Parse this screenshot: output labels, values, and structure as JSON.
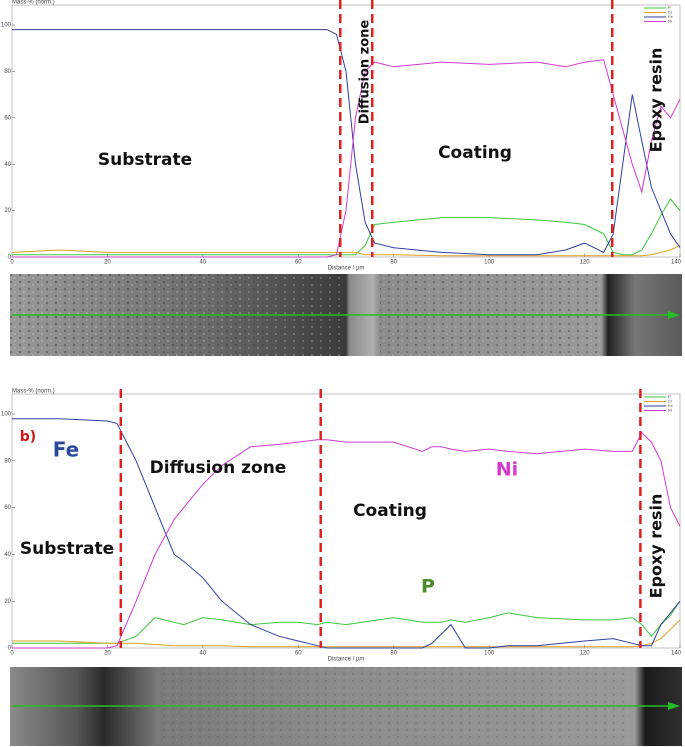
{
  "chart_data": [
    {
      "type": "line",
      "title": "Mass-% (norm.)",
      "x_label": "Distance / µm",
      "x": [
        0,
        10,
        20,
        30,
        40,
        50,
        60,
        66,
        68,
        70,
        72,
        74,
        76,
        80,
        90,
        100,
        110,
        116,
        120,
        124,
        126,
        128,
        130,
        132,
        134,
        136,
        138,
        140
      ],
      "series": [
        {
          "name": "P",
          "color": "#3cc83c",
          "values": [
            1,
            1,
            1,
            1,
            1,
            1,
            1,
            1,
            1,
            1,
            1,
            5,
            14,
            15,
            17,
            17,
            16,
            15,
            14,
            10,
            2,
            1,
            1,
            3,
            10,
            18,
            25,
            20
          ]
        },
        {
          "name": "Cr",
          "color": "#e0a020",
          "values": [
            2,
            3,
            2,
            2,
            2,
            2,
            2,
            2,
            2,
            2,
            2,
            1,
            1,
            1,
            0.5,
            0.5,
            0.5,
            0.5,
            0.5,
            0.5,
            0.5,
            0.5,
            0.5,
            0.5,
            1,
            2,
            3,
            5
          ]
        },
        {
          "name": "Fe",
          "color": "#303fa0",
          "values": [
            98,
            98,
            98,
            98,
            98,
            98,
            98,
            98,
            96,
            80,
            40,
            15,
            6,
            4,
            2,
            1,
            1,
            3,
            6,
            2,
            10,
            40,
            70,
            50,
            30,
            20,
            10,
            4
          ]
        },
        {
          "name": "Ni",
          "color": "#d23ad2",
          "values": [
            0,
            0,
            0,
            0,
            0,
            0,
            0,
            0,
            1,
            20,
            60,
            80,
            84,
            82,
            84,
            83,
            84,
            82,
            84,
            85,
            70,
            55,
            40,
            28,
            50,
            65,
            60,
            68
          ]
        }
      ],
      "xlim": [
        0,
        140
      ],
      "ylim": [
        0,
        100
      ],
      "xticks": [
        0,
        20,
        40,
        60,
        80,
        100,
        120,
        140
      ],
      "yticks": [
        0,
        20,
        40,
        60,
        80,
        100
      ],
      "boundaries": [
        68.8,
        75.5,
        125.8
      ],
      "annotations": [
        {
          "text": "Substrate",
          "color": "#111"
        },
        {
          "text": "Diffusion zone",
          "color": "#111"
        },
        {
          "text": "Coating",
          "color": "#111"
        },
        {
          "text": "Epoxy resin",
          "color": "#111"
        }
      ]
    },
    {
      "type": "line",
      "title": "Mass-% (norm.)",
      "x_label": "Distance / µm",
      "x": [
        0,
        10,
        20,
        22,
        26,
        30,
        34,
        36,
        40,
        44,
        50,
        56,
        60,
        64,
        66,
        70,
        80,
        86,
        88,
        90,
        92,
        95,
        100,
        104,
        110,
        120,
        126,
        130,
        132,
        134,
        136,
        138,
        140
      ],
      "series": [
        {
          "name": "P",
          "color": "#3cc83c",
          "values": [
            2,
            2,
            2,
            2,
            5,
            13,
            11,
            10,
            13,
            12,
            10,
            11,
            11,
            10,
            11,
            10,
            13,
            11,
            11,
            11,
            12,
            11,
            13,
            15,
            13,
            12,
            12,
            13,
            10,
            5,
            10,
            14,
            20
          ]
        },
        {
          "name": "Cr",
          "color": "#e0a020",
          "values": [
            3,
            3,
            2,
            2,
            2,
            1.5,
            1,
            1,
            1,
            1,
            0.5,
            0.5,
            0.5,
            0.5,
            0.5,
            0.5,
            0.5,
            0.5,
            0.5,
            0.5,
            0.5,
            0.5,
            0.5,
            0.5,
            0.5,
            0.5,
            0.5,
            0.5,
            1,
            2,
            4,
            8,
            12
          ]
        },
        {
          "name": "Fe",
          "color": "#303fa0",
          "values": [
            98,
            98,
            97,
            96,
            80,
            60,
            40,
            37,
            30,
            20,
            10,
            5,
            3,
            1,
            0,
            0,
            0,
            0,
            2,
            6,
            10,
            0,
            0,
            1,
            1,
            3,
            4,
            2,
            1,
            1,
            10,
            15,
            20
          ]
        },
        {
          "name": "Ni",
          "color": "#d23ad2",
          "values": [
            0,
            0,
            0,
            1,
            20,
            40,
            55,
            60,
            70,
            78,
            86,
            87,
            88,
            89,
            89,
            88,
            88,
            84,
            86,
            86,
            85,
            84,
            85,
            84,
            83,
            85,
            84,
            84,
            92,
            88,
            80,
            60,
            52
          ]
        }
      ],
      "xlim": [
        0,
        140
      ],
      "ylim": [
        0,
        100
      ],
      "xticks": [
        0,
        20,
        40,
        60,
        80,
        100,
        120,
        140
      ],
      "yticks": [
        0,
        20,
        40,
        60,
        80,
        100
      ],
      "boundaries": [
        22.8,
        64.7,
        131.7
      ],
      "annotations": [
        {
          "text": "b)",
          "color": "#d01818"
        },
        {
          "text": "Fe",
          "color": "#2d4a9a"
        },
        {
          "text": "Diffusion zone",
          "color": "#111"
        },
        {
          "text": "Ni",
          "color": "#d23ad2"
        },
        {
          "text": "Coating",
          "color": "#111"
        },
        {
          "text": "Substrate",
          "color": "#111"
        },
        {
          "text": "P",
          "color": "#4a8a2a"
        },
        {
          "text": "Epoxy resin",
          "color": "#111"
        }
      ]
    }
  ]
}
